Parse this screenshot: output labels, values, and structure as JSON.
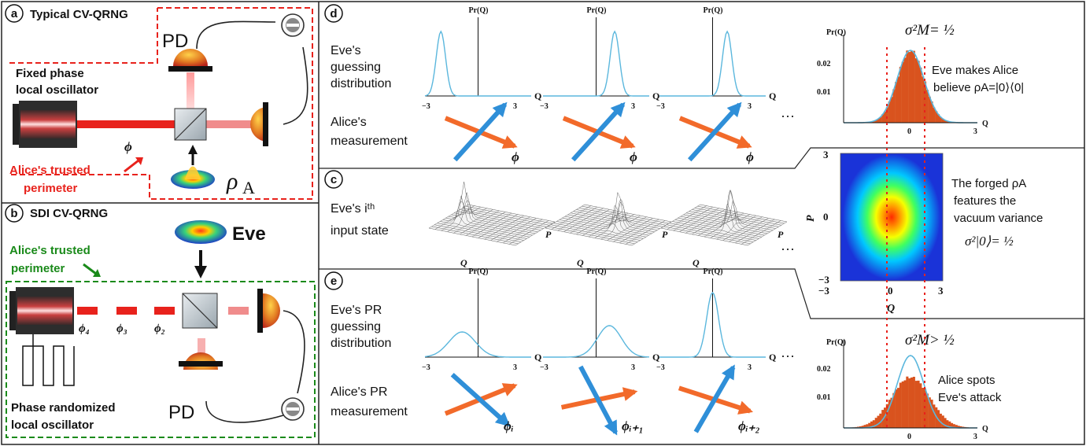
{
  "panel_a": {
    "badge": "a",
    "title": "Typical CV-QRNG",
    "pd_label": "PD",
    "lo_label_1": "Fixed phase",
    "lo_label_2": "local oscillator",
    "phase": "ϕ",
    "perimeter_1": "Alice's trusted",
    "perimeter_2": "perimeter",
    "rho": "ρ",
    "rho_sub": "A",
    "perimeter_color": "#e8221c"
  },
  "panel_b": {
    "badge": "b",
    "title": "SDI CV-QRNG",
    "eve": "Eve",
    "perimeter_1": "Alice's trusted",
    "perimeter_2": "perimeter",
    "phases": [
      "ϕ₄",
      "ϕ₃",
      "ϕ₂"
    ],
    "pd_label": "PD",
    "lo_label_1": "Phase randomized",
    "lo_label_2": "local oscillator",
    "perimeter_color": "#1a8a1a"
  },
  "panel_d": {
    "badge": "d",
    "row1_1": "Eve's",
    "row1_2": "guessing",
    "row1_3": "distribution",
    "row2_1": "Alice's",
    "row2_2": "measurement",
    "axis_label": "Pr(Q)",
    "tick_neg": "−3",
    "tick_pos": "3",
    "q": "Q",
    "phase": "ϕ",
    "ellipsis": "···",
    "sigma_title": "σ²M= ½",
    "y_ticks": [
      "0.02",
      "0.01"
    ],
    "x_ticks": [
      "−3",
      "0",
      "3"
    ],
    "note_1": "Eve makes Alice",
    "note_2": "believe ρA=|0⟩⟨0|"
  },
  "panel_c": {
    "badge": "c",
    "row_1": "Eve's iᵗʰ",
    "row_2": "input state",
    "axis_q": "Q",
    "axis_p": "P",
    "ellipsis": "···",
    "heat_ticks": [
      "3",
      "0",
      "−3"
    ],
    "heat_xticks": [
      "−3",
      "0",
      "3"
    ],
    "heat_xlabel": "Q",
    "heat_ylabel": "P",
    "note_1": "The forged ρA",
    "note_2": "features the",
    "note_3": "vacuum variance",
    "note_4": "σ²|0⟩= ½"
  },
  "panel_e": {
    "badge": "e",
    "row1_1": "Eve's PR",
    "row1_2": "guessing",
    "row1_3": "distribution",
    "row2_1": "Alice's PR",
    "row2_2": "measurement",
    "axis_label": "Pr(Q)",
    "tick_neg": "−3",
    "tick_pos": "3",
    "q": "Q",
    "phases": [
      "ϕᵢ",
      "ϕᵢ₊₁",
      "ϕᵢ₊₂"
    ],
    "ellipsis": "···",
    "sigma_title": "σ²M> ½",
    "y_ticks": [
      "0.02",
      "0.01"
    ],
    "x_ticks": [
      "−3",
      "0",
      "3"
    ],
    "note_1": "Alice spots",
    "note_2": "Eve's attack"
  },
  "colors": {
    "laser": "#e8221c",
    "orange_arrow": "#f26a2a",
    "blue_arrow": "#2f8fd8",
    "hist": "#d9531e",
    "curve": "#5bb7dd",
    "dotted": "#e8221c"
  }
}
